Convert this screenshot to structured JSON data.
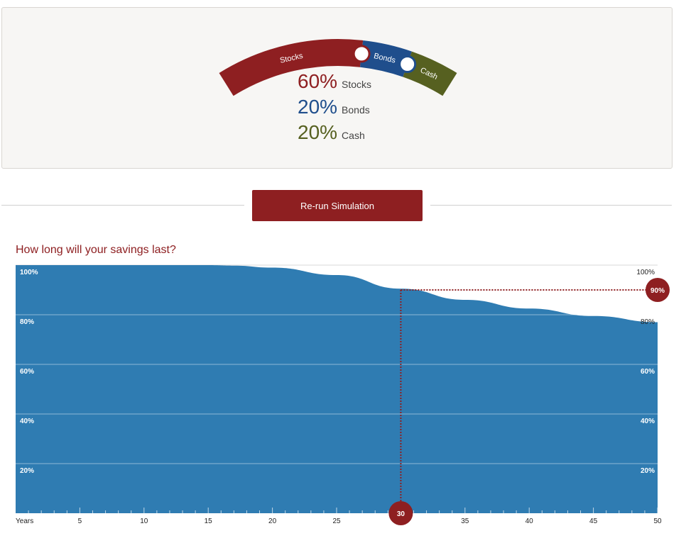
{
  "allocation": {
    "segments": [
      {
        "name": "Stocks",
        "value": 60,
        "color": "#8e1f21"
      },
      {
        "name": "Bonds",
        "value": 20,
        "color": "#1f4e8c"
      },
      {
        "name": "Cash",
        "value": 20,
        "color": "#566020"
      }
    ],
    "legend": [
      {
        "pct": "60%",
        "label": "Stocks",
        "color": "#8e1f21"
      },
      {
        "pct": "20%",
        "label": "Bonds",
        "color": "#1f4e8c"
      },
      {
        "pct": "20%",
        "label": "Cash",
        "color": "#566020"
      }
    ]
  },
  "rerun": {
    "label": "Re-run Simulation"
  },
  "chart": {
    "title": "How long will your savings last?",
    "fill_color": "#2f7cb2",
    "marker_color": "#8e1f21",
    "marker_x_label": "30",
    "marker_y_label": "90%",
    "y_tick_labels_left": [
      "100%",
      "80%",
      "60%",
      "40%",
      "20%"
    ],
    "y_tick_labels_right": [
      "100%",
      "80%",
      "60%",
      "40%",
      "20%"
    ],
    "x_first_label": "Years"
  },
  "chart_data": {
    "type": "area",
    "title": "How long will your savings last?",
    "x": [
      0,
      5,
      10,
      15,
      17,
      20,
      25,
      30,
      35,
      40,
      45,
      50
    ],
    "y": [
      100,
      100,
      100,
      100,
      99.8,
      99,
      96,
      90.5,
      86,
      82.5,
      79.5,
      77
    ],
    "xlabel": "Years",
    "ylabel": "",
    "xlim": [
      0,
      50
    ],
    "ylim": [
      0,
      100
    ],
    "x_ticks": [
      5,
      10,
      15,
      20,
      25,
      30,
      35,
      40,
      45,
      50
    ],
    "y_ticks": [
      20,
      40,
      60,
      80,
      100
    ],
    "grid": true,
    "highlight": {
      "x": 30,
      "y": 90
    }
  }
}
